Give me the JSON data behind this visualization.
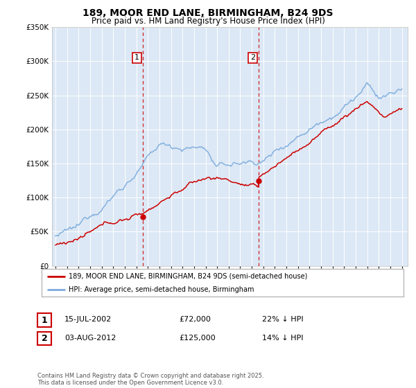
{
  "title": "189, MOOR END LANE, BIRMINGHAM, B24 9DS",
  "subtitle": "Price paid vs. HM Land Registry's House Price Index (HPI)",
  "legend_line1": "189, MOOR END LANE, BIRMINGHAM, B24 9DS (semi-detached house)",
  "legend_line2": "HPI: Average price, semi-detached house, Birmingham",
  "annotation1_label": "1",
  "annotation1_date": "15-JUL-2002",
  "annotation1_price": "£72,000",
  "annotation1_hpi": "22% ↓ HPI",
  "annotation2_label": "2",
  "annotation2_date": "03-AUG-2012",
  "annotation2_price": "£125,000",
  "annotation2_hpi": "14% ↓ HPI",
  "footer": "Contains HM Land Registry data © Crown copyright and database right 2025.\nThis data is licensed under the Open Government Licence v3.0.",
  "red_color": "#cc0000",
  "blue_color": "#7aaadd",
  "vline_color": "#cc0000",
  "background_color": "#ffffff",
  "plot_bg_color": "#dce8f5",
  "ylim": [
    0,
    350000
  ],
  "year_start": 1995,
  "year_end": 2025,
  "sale1_year": 2002.54,
  "sale1_price": 72000,
  "sale2_year": 2012.59,
  "sale2_price": 125000
}
